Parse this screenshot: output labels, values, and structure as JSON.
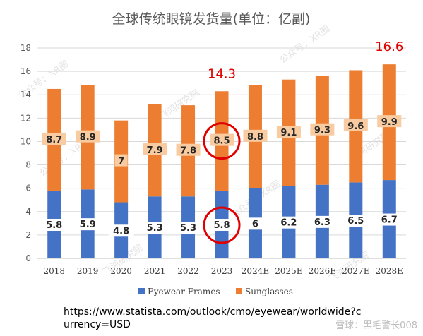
{
  "chart_data": {
    "type": "bar",
    "stacked": true,
    "title": "全球传统眼镜发货量(单位：亿副)",
    "categories": [
      "2018",
      "2019",
      "2020",
      "2021",
      "2022",
      "2023",
      "2024E",
      "2025E",
      "2026E",
      "2027E",
      "2028E"
    ],
    "series": [
      {
        "name": "Eyewear Frames",
        "color": "#4472c4",
        "values": [
          5.8,
          5.9,
          4.8,
          5.3,
          5.3,
          5.8,
          6,
          6.2,
          6.3,
          6.5,
          6.7
        ]
      },
      {
        "name": "Sunglasses",
        "color": "#ed7d31",
        "values": [
          8.7,
          8.9,
          7,
          7.9,
          7.8,
          8.5,
          8.8,
          9.1,
          9.3,
          9.6,
          9.9
        ]
      }
    ],
    "yticks": [
      0,
      2,
      4,
      6,
      8,
      10,
      12,
      14,
      16,
      18
    ],
    "ylim": [
      0,
      18
    ],
    "grid": true,
    "legend": "bottom",
    "annotations": [
      {
        "category": "2023",
        "text": "14.3",
        "color": "#e00000"
      },
      {
        "category": "2028E",
        "text": "16.6",
        "color": "#e00000"
      }
    ],
    "highlighted": [
      {
        "category": "2023",
        "series": "Sunglasses"
      },
      {
        "category": "2023",
        "series": "Eyewear Frames"
      }
    ]
  },
  "source": "https://www.statista.com/outlook/cmo/eyewear/worldwide?currency=USD",
  "watermark": {
    "lines": [
      "公众号：XR圈",
      "飞鸿研究院"
    ],
    "signature": "雪球：黑毛警长008"
  }
}
